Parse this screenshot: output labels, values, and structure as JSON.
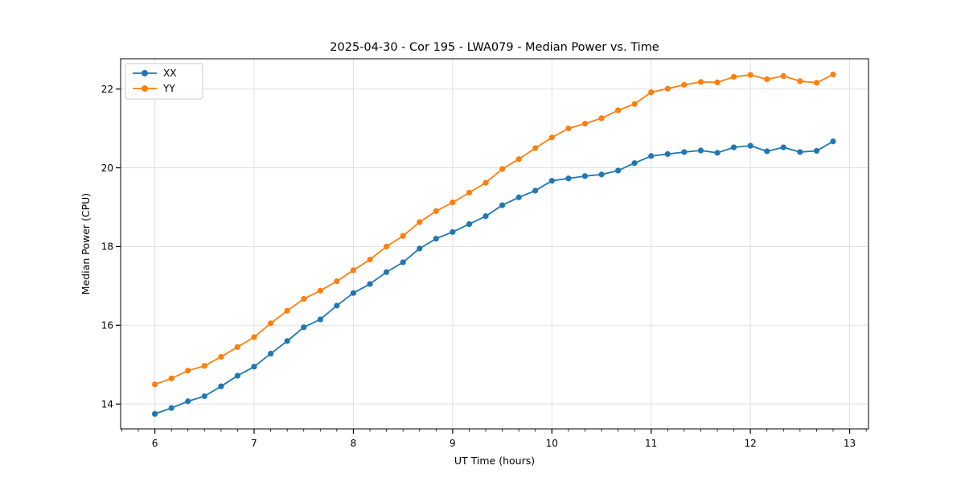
{
  "chart_data": {
    "type": "line",
    "title": "2025-04-30 - Cor 195 - LWA079 - Median Power vs. Time",
    "xlabel": "UT Time (hours)",
    "ylabel": "Median Power (CPU)",
    "grid": true,
    "legend_position": "upper-left",
    "xlim": [
      5.655,
      13.19
    ],
    "ylim": [
      13.37,
      22.77
    ],
    "x_ticks": [
      6,
      7,
      8,
      9,
      10,
      11,
      12,
      13
    ],
    "y_ticks": [
      14,
      16,
      18,
      20,
      22
    ],
    "x_minor_step": 0.16667,
    "x": [
      6.0,
      6.167,
      6.333,
      6.5,
      6.667,
      6.833,
      7.0,
      7.167,
      7.333,
      7.5,
      7.667,
      7.833,
      8.0,
      8.167,
      8.333,
      8.5,
      8.667,
      8.833,
      9.0,
      9.167,
      9.333,
      9.5,
      9.667,
      9.833,
      10.0,
      10.167,
      10.333,
      10.5,
      10.667,
      10.833,
      11.0,
      11.167,
      11.333,
      11.5,
      11.667,
      11.833,
      12.0,
      12.167,
      12.333,
      12.5,
      12.667,
      12.833
    ],
    "series": [
      {
        "name": "XX",
        "color": "#1f77b4",
        "values": [
          13.75,
          13.9,
          14.07,
          14.2,
          14.45,
          14.72,
          14.95,
          15.28,
          15.6,
          15.95,
          16.15,
          16.5,
          16.82,
          17.05,
          17.35,
          17.6,
          17.95,
          18.2,
          18.37,
          18.57,
          18.77,
          19.05,
          19.25,
          19.42,
          19.67,
          19.73,
          19.79,
          19.83,
          19.93,
          20.12,
          20.3,
          20.35,
          20.4,
          20.44,
          20.38,
          20.52,
          20.56,
          20.42,
          20.52,
          20.4,
          20.43,
          20.67
        ]
      },
      {
        "name": "YY",
        "color": "#ff7f0e",
        "values": [
          14.5,
          14.65,
          14.85,
          14.97,
          15.2,
          15.45,
          15.7,
          16.05,
          16.37,
          16.67,
          16.88,
          17.12,
          17.4,
          17.67,
          18.0,
          18.27,
          18.62,
          18.9,
          19.12,
          19.37,
          19.62,
          19.97,
          20.22,
          20.5,
          20.77,
          21.0,
          21.12,
          21.26,
          21.46,
          21.62,
          21.92,
          22.01,
          22.11,
          22.18,
          22.17,
          22.31,
          22.36,
          22.25,
          22.33,
          22.2,
          22.16,
          22.37
        ]
      }
    ]
  },
  "style": {
    "grid_color": "#e0e0e0",
    "spine_color": "#000000",
    "legend_border_color": "#cccccc",
    "background_color": "#ffffff"
  }
}
